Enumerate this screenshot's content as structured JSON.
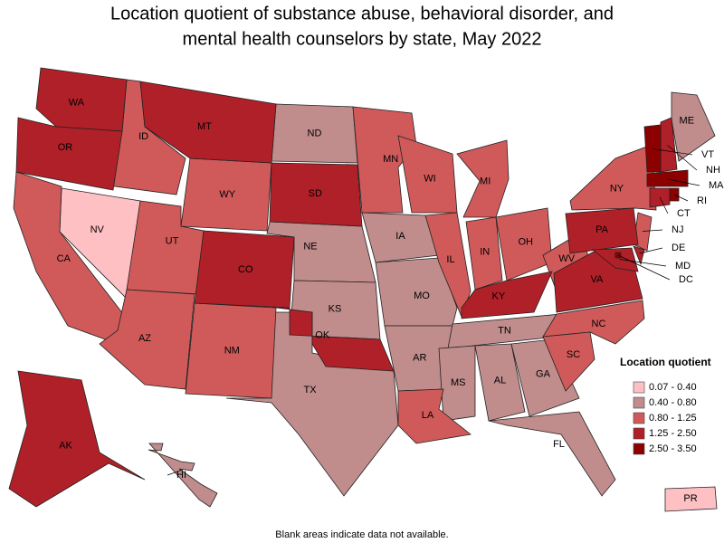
{
  "title": [
    "Location quotient of substance abuse, behavioral disorder, and",
    "mental health counselors by state, May 2022"
  ],
  "legend": {
    "title": "Location quotient",
    "bins": [
      {
        "label": "0.07 - 0.40",
        "color": "#ffc0c4",
        "states": [
          "NV",
          "PR"
        ]
      },
      {
        "label": "0.40 - 0.80",
        "color": "#c08c8c",
        "states": [
          "ND",
          "NE",
          "KS",
          "IA",
          "MO",
          "AR",
          "TX",
          "TN",
          "MS",
          "AL",
          "GA",
          "FL",
          "ME",
          "HI"
        ]
      },
      {
        "label": "0.80 - 1.25",
        "color": "#d05a5a",
        "states": [
          "CA",
          "ID",
          "UT",
          "AZ",
          "NM",
          "WY",
          "MN",
          "WI",
          "MI",
          "IL",
          "IN",
          "OH",
          "WV",
          "NC",
          "SC",
          "LA",
          "NY",
          "NJ"
        ]
      },
      {
        "label": "1.25 - 2.50",
        "color": "#b02028",
        "states": [
          "WA",
          "OR",
          "MT",
          "SD",
          "CO",
          "OK",
          "KY",
          "PA",
          "VA",
          "AK",
          "NH",
          "CT",
          "DE",
          "MD"
        ]
      },
      {
        "label": "2.50 - 3.50",
        "color": "#8c0000",
        "states": [
          "VT",
          "MA",
          "RI",
          "DC"
        ]
      }
    ]
  },
  "footnote": "Blank areas indicate data not available."
}
